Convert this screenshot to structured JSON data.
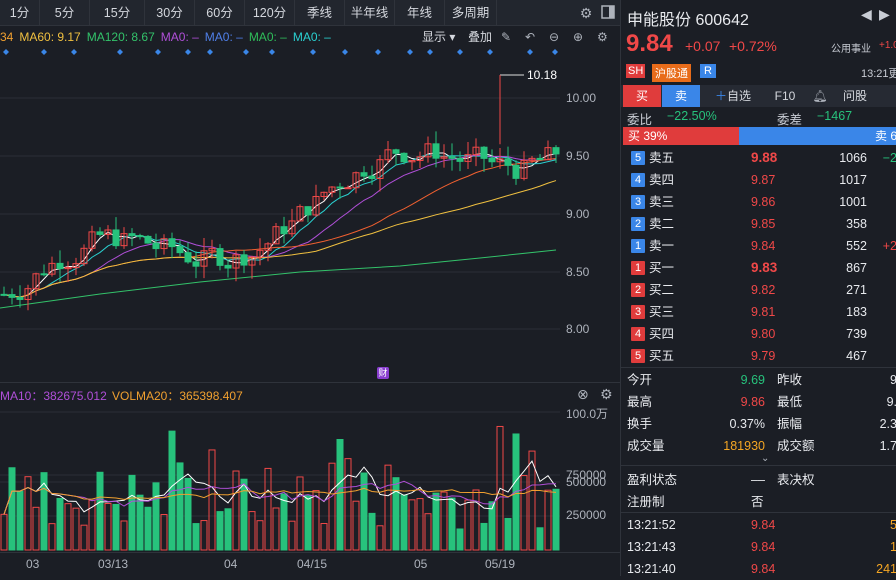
{
  "timeframes": [
    "1分",
    "5分",
    "15分",
    "30分",
    "60分",
    "120分",
    "季线",
    "半年线",
    "年线",
    "多周期"
  ],
  "ma_legend": [
    {
      "label": "34",
      "color": "#f0a030"
    },
    {
      "label": "MA60: 9.17",
      "color": "#f0c040"
    },
    {
      "label": "MA120: 8.67",
      "color": "#33c26a"
    },
    {
      "label": "MA0: –",
      "color": "#b04fd8"
    },
    {
      "label": "MA0: –",
      "color": "#4f7fe8"
    },
    {
      "label": "MA0: –",
      "color": "#2fbd5a"
    },
    {
      "label": "MA0: –",
      "color": "#2ad0d0"
    }
  ],
  "chart_tools": {
    "display": "显示",
    "overlay": "叠加"
  },
  "price_axis": [
    "10.00",
    "9.50",
    "9.00",
    "8.50",
    "8.00"
  ],
  "high_marker": "10.18",
  "finance_marker": "财",
  "vol_legend": {
    "ma10": "MA10：382675.012",
    "ma20": "VOLMA20：365398.407"
  },
  "vol_axis": [
    "100.0万",
    "750000",
    "500000",
    "250000"
  ],
  "date_axis": [
    "03",
    "03/13",
    "04",
    "04/15",
    "05",
    "05/19"
  ],
  "stock": {
    "name": "申能股份",
    "code": "600642",
    "price": "9.84",
    "change": "+0.07",
    "pct": "+0.72%",
    "sector": "公用事业",
    "sector_pct": "+1.0",
    "time": "13:21更",
    "tags": [
      "SH",
      "沪股通",
      "R"
    ]
  },
  "trade_tabs": [
    "买",
    "卖",
    "自选",
    "F10",
    "",
    "问股"
  ],
  "weibi": {
    "label": "委比",
    "value": "−22.50%",
    "diff_label": "委差",
    "diff_value": "−1467"
  },
  "ratio": {
    "buy": "买 39%",
    "sell": "卖 6"
  },
  "asks": [
    {
      "n": "5",
      "label": "卖五",
      "price": "9.88",
      "vol": "1066",
      "chg": "−2"
    },
    {
      "n": "4",
      "label": "卖四",
      "price": "9.87",
      "vol": "1017",
      "chg": ""
    },
    {
      "n": "3",
      "label": "卖三",
      "price": "9.86",
      "vol": "1001",
      "chg": ""
    },
    {
      "n": "2",
      "label": "卖二",
      "price": "9.85",
      "vol": "358",
      "chg": ""
    },
    {
      "n": "1",
      "label": "卖一",
      "price": "9.84",
      "vol": "552",
      "chg": "+2"
    }
  ],
  "bids": [
    {
      "n": "1",
      "label": "买一",
      "price": "9.83",
      "vol": "867",
      "chg": ""
    },
    {
      "n": "2",
      "label": "买二",
      "price": "9.82",
      "vol": "271",
      "chg": ""
    },
    {
      "n": "3",
      "label": "买三",
      "price": "9.81",
      "vol": "183",
      "chg": ""
    },
    {
      "n": "4",
      "label": "买四",
      "price": "9.80",
      "vol": "739",
      "chg": ""
    },
    {
      "n": "5",
      "label": "买五",
      "price": "9.79",
      "vol": "467",
      "chg": ""
    }
  ],
  "stats": [
    {
      "l1": "今开",
      "v1": "9.69",
      "c1": "green",
      "l2": "昨收",
      "v2": "9"
    },
    {
      "l1": "最高",
      "v1": "9.86",
      "c1": "red",
      "l2": "最低",
      "v2": "9."
    },
    {
      "l1": "换手",
      "v1": "0.37%",
      "c1": "white",
      "l2": "振幅",
      "v2": "2.3"
    },
    {
      "l1": "成交量",
      "v1": "181930",
      "c1": "orange",
      "l2": "成交额",
      "v2": "1.7"
    }
  ],
  "extra": [
    {
      "l1": "盈利状态",
      "v1": "––",
      "l2": "表决权",
      "v2": ""
    },
    {
      "l1": "注册制",
      "v1": "否",
      "l2": "",
      "v2": ""
    }
  ],
  "ticks": [
    {
      "time": "13:21:52",
      "price": "9.84",
      "vol": "5"
    },
    {
      "time": "13:21:43",
      "price": "9.84",
      "vol": "1"
    },
    {
      "time": "13:21:40",
      "price": "9.84",
      "vol": "241"
    }
  ]
}
